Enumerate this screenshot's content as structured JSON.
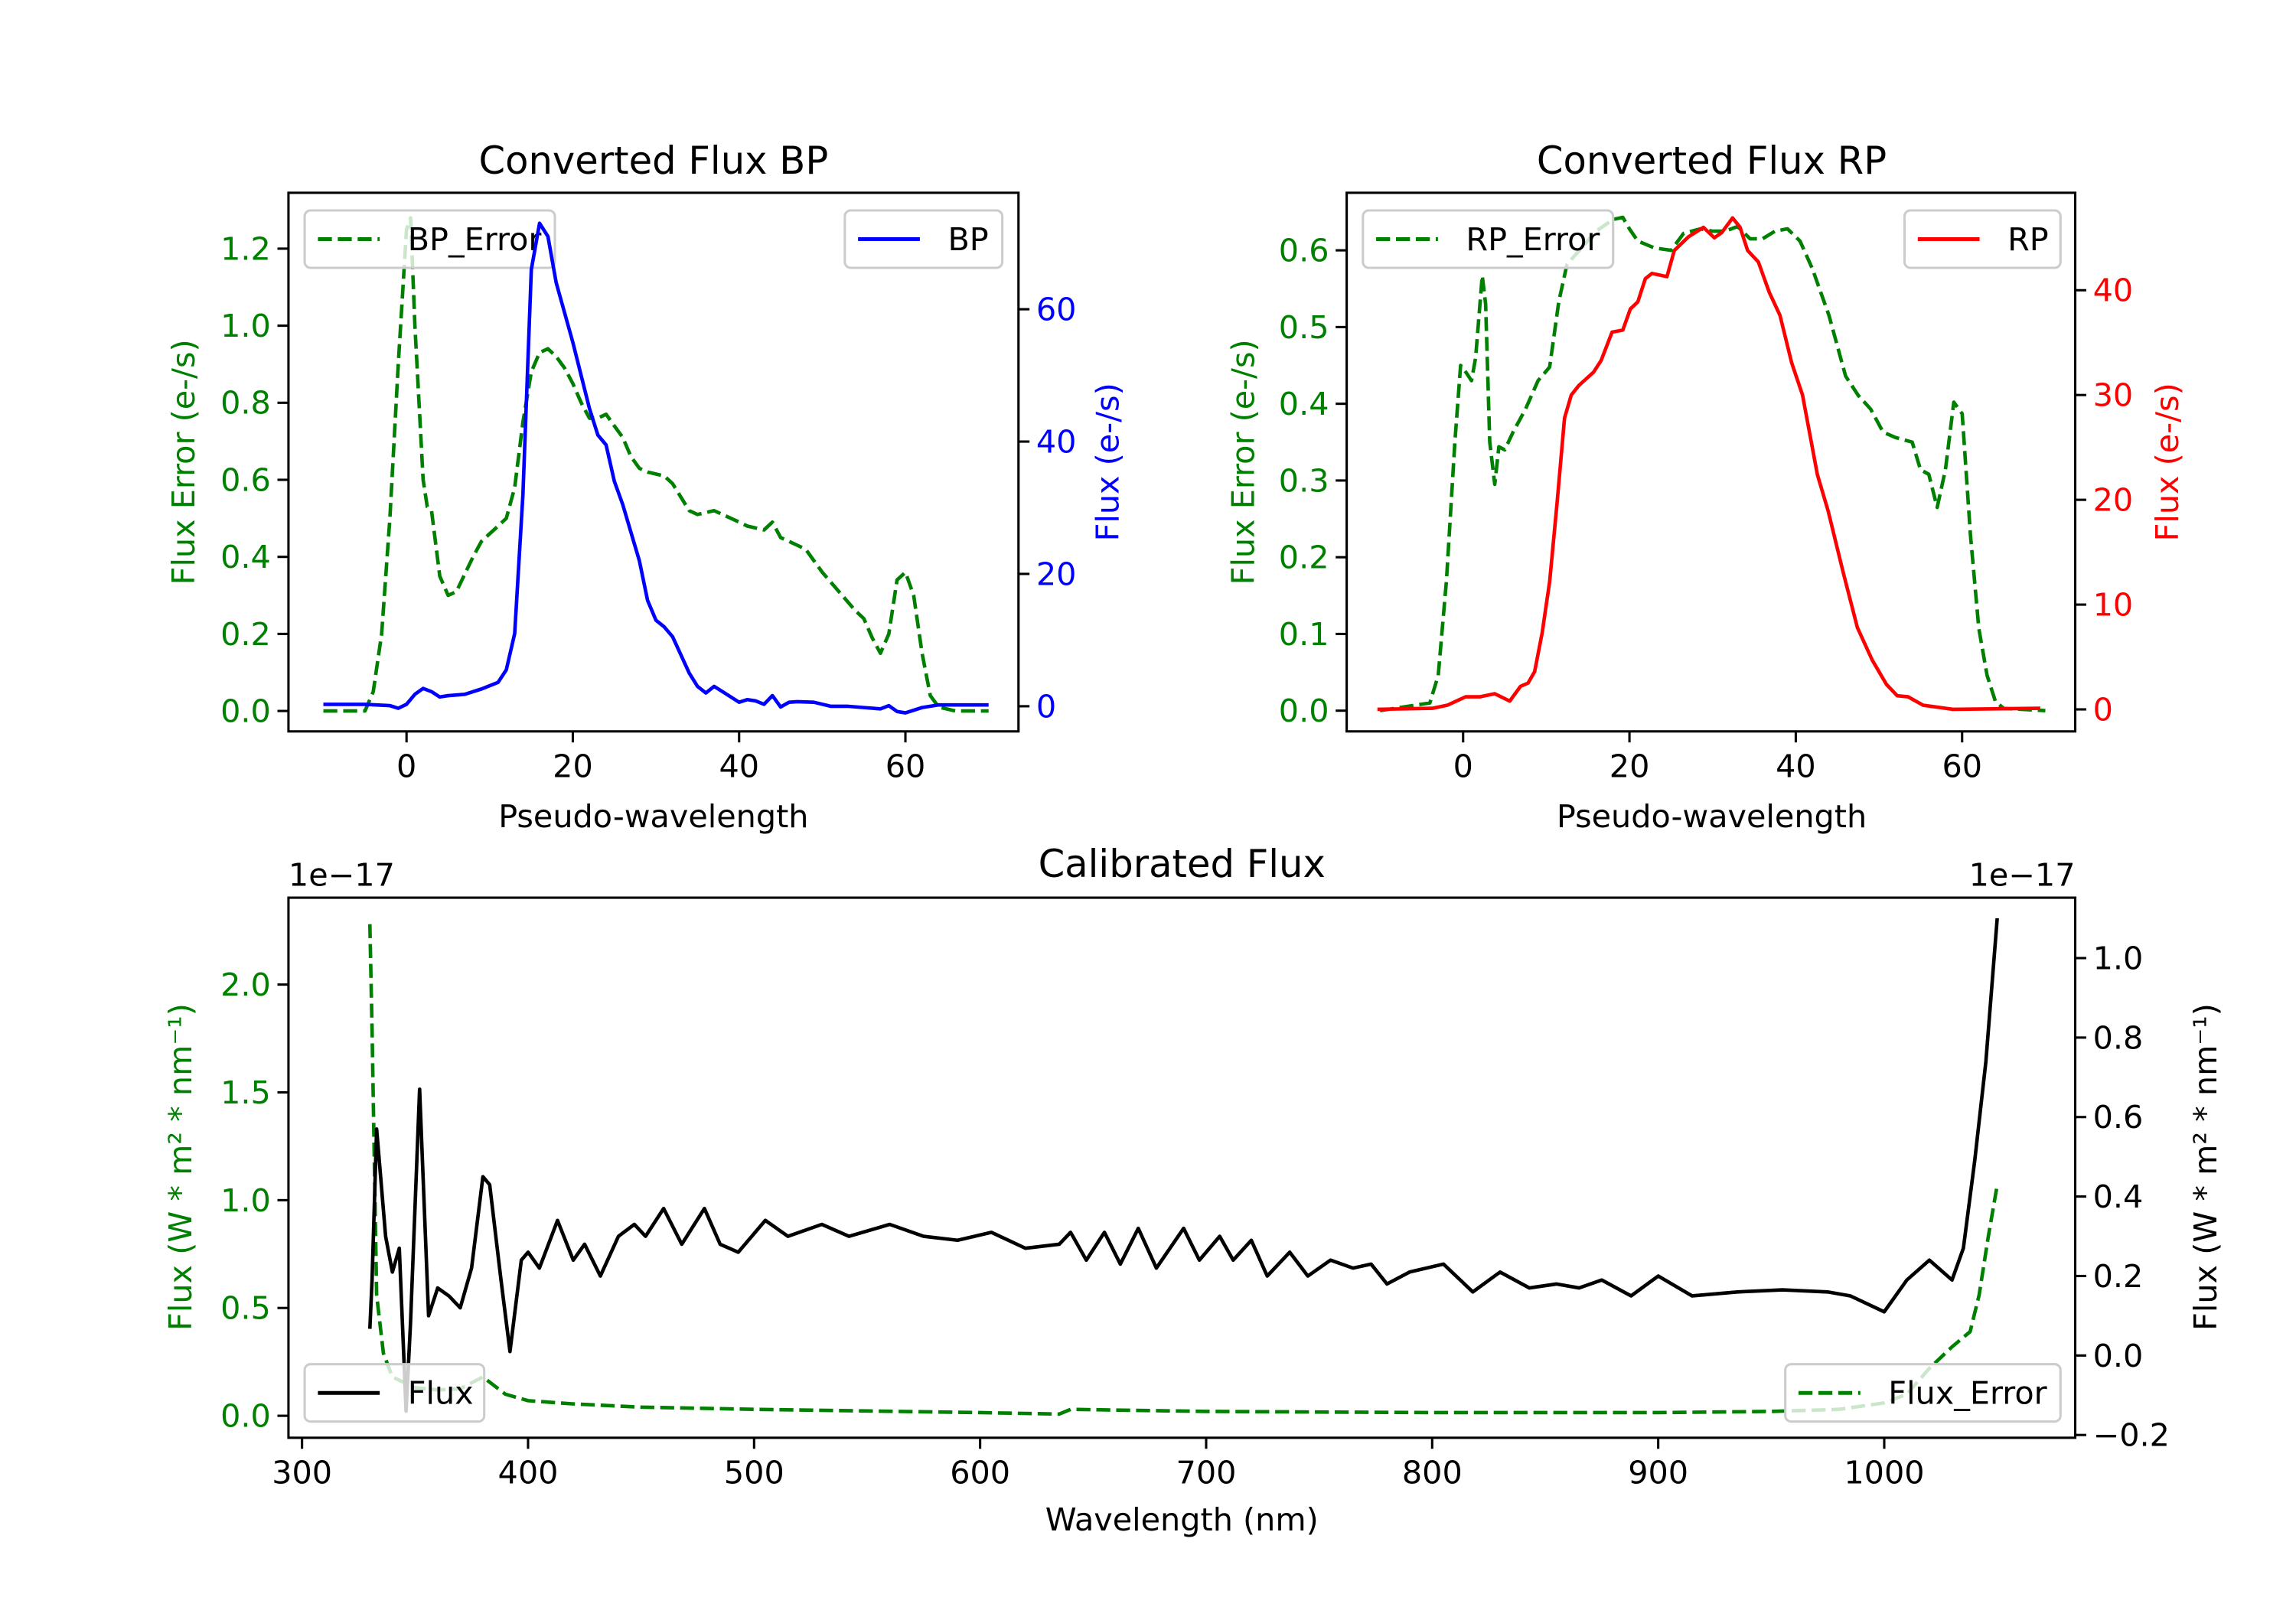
{
  "chart_data": [
    {
      "id": "bp",
      "type": "line",
      "title": "Converted Flux BP",
      "xlabel": "Pseudo-wavelength",
      "ylabel_left": "Flux Error (e-/s)",
      "ylabel_right": "Flux (e-/s)",
      "xlim": [
        -14.2,
        73.6
      ],
      "ylim_left": [
        -0.053,
        1.345
      ],
      "ylim_right": [
        -3.8,
        77.6
      ],
      "xticks": [
        0,
        20,
        40,
        60
      ],
      "xtick_labels": [
        "0",
        "20",
        "40",
        "60"
      ],
      "yticks_left": [
        0.0,
        0.2,
        0.4,
        0.6,
        0.8,
        1.0,
        1.2
      ],
      "ytick_labels_left": [
        "0.0",
        "0.2",
        "0.4",
        "0.6",
        "0.8",
        "1.0",
        "1.2"
      ],
      "yticks_right": [
        0,
        20,
        40,
        60
      ],
      "ytick_labels_right": [
        "0",
        "20",
        "40",
        "60"
      ],
      "colors": {
        "left": "#008000",
        "right": "#0000ff"
      },
      "series": [
        {
          "name": "BP_Error",
          "axis": "left",
          "style": "dashed",
          "color": "#008000",
          "legend": "upper left",
          "x": [
            -10,
            -5,
            -4,
            -3,
            -2,
            -1,
            0,
            0.5,
            1,
            2,
            2.5,
            3,
            4,
            5,
            6,
            8,
            9,
            10,
            11,
            12,
            13,
            14,
            15,
            16,
            17,
            18,
            19,
            20,
            21,
            22,
            23,
            24,
            25,
            26,
            27,
            28,
            29,
            31,
            32,
            34,
            35,
            37,
            38,
            40,
            41,
            43,
            44,
            45,
            46,
            48,
            50,
            52,
            54,
            55,
            56,
            57,
            58,
            59,
            60,
            61,
            62,
            63,
            64,
            66,
            70
          ],
          "y": [
            0,
            0,
            0.05,
            0.2,
            0.5,
            0.9,
            1.25,
            1.28,
            1.0,
            0.6,
            0.53,
            0.52,
            0.35,
            0.3,
            0.31,
            0.4,
            0.44,
            0.46,
            0.48,
            0.5,
            0.58,
            0.75,
            0.88,
            0.93,
            0.94,
            0.92,
            0.89,
            0.85,
            0.8,
            0.76,
            0.76,
            0.77,
            0.74,
            0.71,
            0.66,
            0.63,
            0.62,
            0.61,
            0.59,
            0.52,
            0.51,
            0.52,
            0.51,
            0.49,
            0.48,
            0.47,
            0.49,
            0.45,
            0.44,
            0.42,
            0.36,
            0.31,
            0.26,
            0.24,
            0.19,
            0.15,
            0.2,
            0.34,
            0.36,
            0.3,
            0.15,
            0.04,
            0.01,
            0,
            0
          ]
        },
        {
          "name": "BP",
          "axis": "right",
          "style": "solid",
          "color": "#0000ff",
          "legend": "upper right",
          "x": [
            -10,
            -5,
            -2,
            -1,
            0,
            1,
            2,
            3,
            4,
            5,
            7,
            9,
            11,
            12,
            13,
            14,
            15,
            16,
            17,
            18,
            20,
            22,
            23,
            24,
            25,
            26,
            28,
            29,
            30,
            31,
            32,
            34,
            35,
            36,
            37,
            38,
            40,
            41,
            42,
            43,
            44,
            45,
            46,
            47,
            49,
            51,
            53,
            55,
            57,
            58,
            59,
            60,
            62,
            64,
            70
          ],
          "y": [
            0.3,
            0.3,
            0.1,
            -0.3,
            0.3,
            1.8,
            2.7,
            2.2,
            1.4,
            1.6,
            1.8,
            2.6,
            3.6,
            5.5,
            11,
            32,
            66,
            73,
            71,
            64,
            55,
            45,
            41,
            39.5,
            34,
            30.5,
            22,
            16,
            13,
            12,
            10.5,
            5,
            3,
            2,
            3,
            2.2,
            0.6,
            1,
            0.8,
            0.3,
            1.6,
            -0.1,
            0.6,
            0.7,
            0.6,
            0,
            0,
            -0.2,
            -0.4,
            0.1,
            -0.8,
            -1,
            -0.2,
            0.2,
            0.2
          ]
        }
      ]
    },
    {
      "id": "rp",
      "type": "line",
      "title": "Converted Flux RP",
      "xlabel": "Pseudo-wavelength",
      "ylabel_left": "Flux Error (e-/s)",
      "ylabel_right": "Flux (e-/s)",
      "xlim": [
        -14.0,
        73.6
      ],
      "ylim_left": [
        -0.027,
        0.675
      ],
      "ylim_right": [
        -2.1,
        49.3
      ],
      "xticks": [
        0,
        20,
        40,
        60
      ],
      "xtick_labels": [
        "0",
        "20",
        "40",
        "60"
      ],
      "yticks_left": [
        0.0,
        0.1,
        0.2,
        0.3,
        0.4,
        0.5,
        0.6
      ],
      "ytick_labels_left": [
        "0.0",
        "0.1",
        "0.2",
        "0.3",
        "0.4",
        "0.5",
        "0.6"
      ],
      "yticks_right": [
        0,
        10,
        20,
        30,
        40
      ],
      "ytick_labels_right": [
        "0",
        "10",
        "20",
        "30",
        "40"
      ],
      "colors": {
        "left": "#008000",
        "right": "#ff0000"
      },
      "series": [
        {
          "name": "RP_Error",
          "axis": "left",
          "style": "dashed",
          "color": "#008000",
          "legend": "upper left",
          "x": [
            -10,
            -4,
            -3,
            -2,
            -1,
            -0.3,
            0.4,
            1,
            1.5,
            2.3,
            2.7,
            3.2,
            3.8,
            4.3,
            5,
            6,
            7.5,
            9,
            10.4,
            11.5,
            12.5,
            14,
            16,
            18,
            19.2,
            20,
            21,
            23,
            25,
            26.5,
            28.5,
            30,
            31.5,
            33,
            34.5,
            36,
            37.5,
            39,
            40.5,
            42,
            44,
            46,
            47.5,
            49,
            50.5,
            52,
            53,
            54,
            55,
            56,
            57,
            58,
            59,
            60,
            61,
            62,
            63,
            64,
            65,
            70
          ],
          "y": [
            0,
            0.01,
            0.046,
            0.17,
            0.35,
            0.45,
            0.44,
            0.43,
            0.46,
            0.567,
            0.53,
            0.35,
            0.295,
            0.344,
            0.34,
            0.363,
            0.393,
            0.43,
            0.448,
            0.533,
            0.582,
            0.6,
            0.625,
            0.64,
            0.643,
            0.628,
            0.612,
            0.603,
            0.6,
            0.622,
            0.628,
            0.625,
            0.625,
            0.631,
            0.615,
            0.615,
            0.625,
            0.628,
            0.612,
            0.576,
            0.515,
            0.436,
            0.411,
            0.393,
            0.363,
            0.356,
            0.353,
            0.35,
            0.314,
            0.308,
            0.265,
            0.314,
            0.402,
            0.387,
            0.229,
            0.107,
            0.046,
            0.012,
            0.003,
            0
          ]
        },
        {
          "name": "RP",
          "axis": "right",
          "style": "solid",
          "color": "#ff0000",
          "legend": "upper right",
          "x": [
            -10.3,
            -3.7,
            -1.9,
            0.3,
            2,
            3.8,
            5.6,
            6.9,
            7.8,
            8.6,
            9.5,
            10.4,
            11.3,
            12.2,
            13,
            13.9,
            15.7,
            16.6,
            17.9,
            19.2,
            20.1,
            21,
            21.9,
            22.7,
            24.5,
            25.4,
            27.1,
            28.9,
            30.2,
            31.1,
            32.4,
            33.3,
            34.2,
            35.5,
            36.8,
            38.1,
            39.5,
            40.8,
            42.6,
            43.9,
            45.7,
            47.4,
            49.2,
            50.9,
            52.2,
            53.5,
            55.3,
            58.9,
            69.4
          ],
          "y": [
            0,
            0.1,
            0.4,
            1.2,
            1.2,
            1.5,
            0.8,
            2.2,
            2.5,
            3.6,
            7.3,
            12.2,
            19.8,
            27.8,
            30,
            30.9,
            32.2,
            33.3,
            36,
            36.2,
            38.2,
            38.9,
            41.1,
            41.6,
            41.3,
            43.8,
            45.1,
            46,
            45,
            45.5,
            46.9,
            46,
            43.8,
            42.7,
            39.8,
            37.6,
            33.1,
            30,
            22.4,
            18.9,
            13.1,
            7.8,
            4.7,
            2.4,
            1.3,
            1.2,
            0.4,
            0,
            0.1
          ]
        }
      ]
    },
    {
      "id": "cal",
      "type": "line",
      "title": "Calibrated Flux",
      "xlabel": "Wavelength (nm)",
      "ylabel_left": "Flux (W * m² * nm⁻¹)",
      "ylabel_right": "Flux (W * m² * nm⁻¹)",
      "offset_left": "1e−17",
      "offset_right": "1e−17",
      "xlim": [
        294,
        1084.5
      ],
      "ylim_left": [
        -0.102,
        2.403
      ],
      "ylim_right": [
        -0.207,
        1.152
      ],
      "xticks": [
        300,
        400,
        500,
        600,
        700,
        800,
        900,
        1000
      ],
      "xtick_labels": [
        "300",
        "400",
        "500",
        "600",
        "700",
        "800",
        "900",
        "1000"
      ],
      "yticks_left": [
        0.0,
        0.5,
        1.0,
        1.5,
        2.0
      ],
      "ytick_labels_left": [
        "0.0",
        "0.5",
        "1.0",
        "1.5",
        "2.0"
      ],
      "yticks_right": [
        -0.2,
        0.0,
        0.2,
        0.4,
        0.6,
        0.8,
        1.0
      ],
      "ytick_labels_right": [
        "−0.2",
        "0.0",
        "0.2",
        "0.4",
        "0.6",
        "0.8",
        "1.0"
      ],
      "colors": {
        "left": "#008000",
        "right": "#000000"
      },
      "series": [
        {
          "name": "Flux_Error",
          "axis": "left",
          "style": "dashed",
          "color": "#008000",
          "legend": "lower right",
          "x": [
            330,
            331,
            333,
            336,
            340,
            350,
            360,
            370,
            380,
            390,
            400,
            420,
            450,
            500,
            550,
            600,
            635,
            640,
            700,
            800,
            900,
            950,
            980,
            1000,
            1010,
            1020,
            1030,
            1038,
            1042,
            1046,
            1050
          ],
          "y": [
            2.28,
            1.79,
            0.56,
            0.29,
            0.18,
            0.13,
            0.12,
            0.125,
            0.18,
            0.1,
            0.07,
            0.055,
            0.04,
            0.03,
            0.022,
            0.015,
            0.008,
            0.03,
            0.02,
            0.015,
            0.015,
            0.02,
            0.03,
            0.06,
            0.1,
            0.22,
            0.32,
            0.39,
            0.56,
            0.83,
            1.07
          ]
        },
        {
          "name": "Flux",
          "axis": "right",
          "style": "solid",
          "color": "#000000",
          "legend": "lower left",
          "x": [
            330,
            331,
            333,
            337,
            340,
            343,
            346,
            348,
            352,
            356,
            360,
            365,
            370,
            375,
            380,
            383,
            388,
            392,
            397,
            400,
            405,
            413,
            420,
            425,
            432,
            440,
            447,
            452,
            460,
            468,
            478,
            485,
            493,
            505,
            515,
            530,
            542,
            560,
            575,
            590,
            605,
            620,
            635,
            640,
            647,
            655,
            662,
            670,
            678,
            690,
            697,
            706,
            712,
            720,
            727,
            737,
            745,
            755,
            765,
            773,
            780,
            790,
            805,
            818,
            830,
            843,
            855,
            865,
            875,
            888,
            900,
            915,
            935,
            955,
            975,
            985,
            1000,
            1010,
            1020,
            1030,
            1035,
            1040,
            1045,
            1050
          ],
          "y": [
            0.067,
            0.19,
            0.57,
            0.3,
            0.21,
            0.27,
            -0.14,
            0.08,
            0.67,
            0.1,
            0.17,
            0.15,
            0.12,
            0.22,
            0.45,
            0.43,
            0.19,
            0.01,
            0.24,
            0.26,
            0.22,
            0.34,
            0.24,
            0.28,
            0.2,
            0.3,
            0.33,
            0.3,
            0.37,
            0.28,
            0.37,
            0.28,
            0.26,
            0.34,
            0.3,
            0.33,
            0.3,
            0.33,
            0.3,
            0.29,
            0.31,
            0.27,
            0.28,
            0.31,
            0.24,
            0.31,
            0.23,
            0.32,
            0.22,
            0.32,
            0.24,
            0.3,
            0.24,
            0.29,
            0.2,
            0.26,
            0.2,
            0.24,
            0.22,
            0.23,
            0.18,
            0.21,
            0.23,
            0.16,
            0.21,
            0.17,
            0.18,
            0.17,
            0.19,
            0.15,
            0.2,
            0.15,
            0.16,
            0.165,
            0.16,
            0.15,
            0.11,
            0.19,
            0.24,
            0.19,
            0.27,
            0.49,
            0.74,
            1.1
          ]
        }
      ]
    }
  ]
}
